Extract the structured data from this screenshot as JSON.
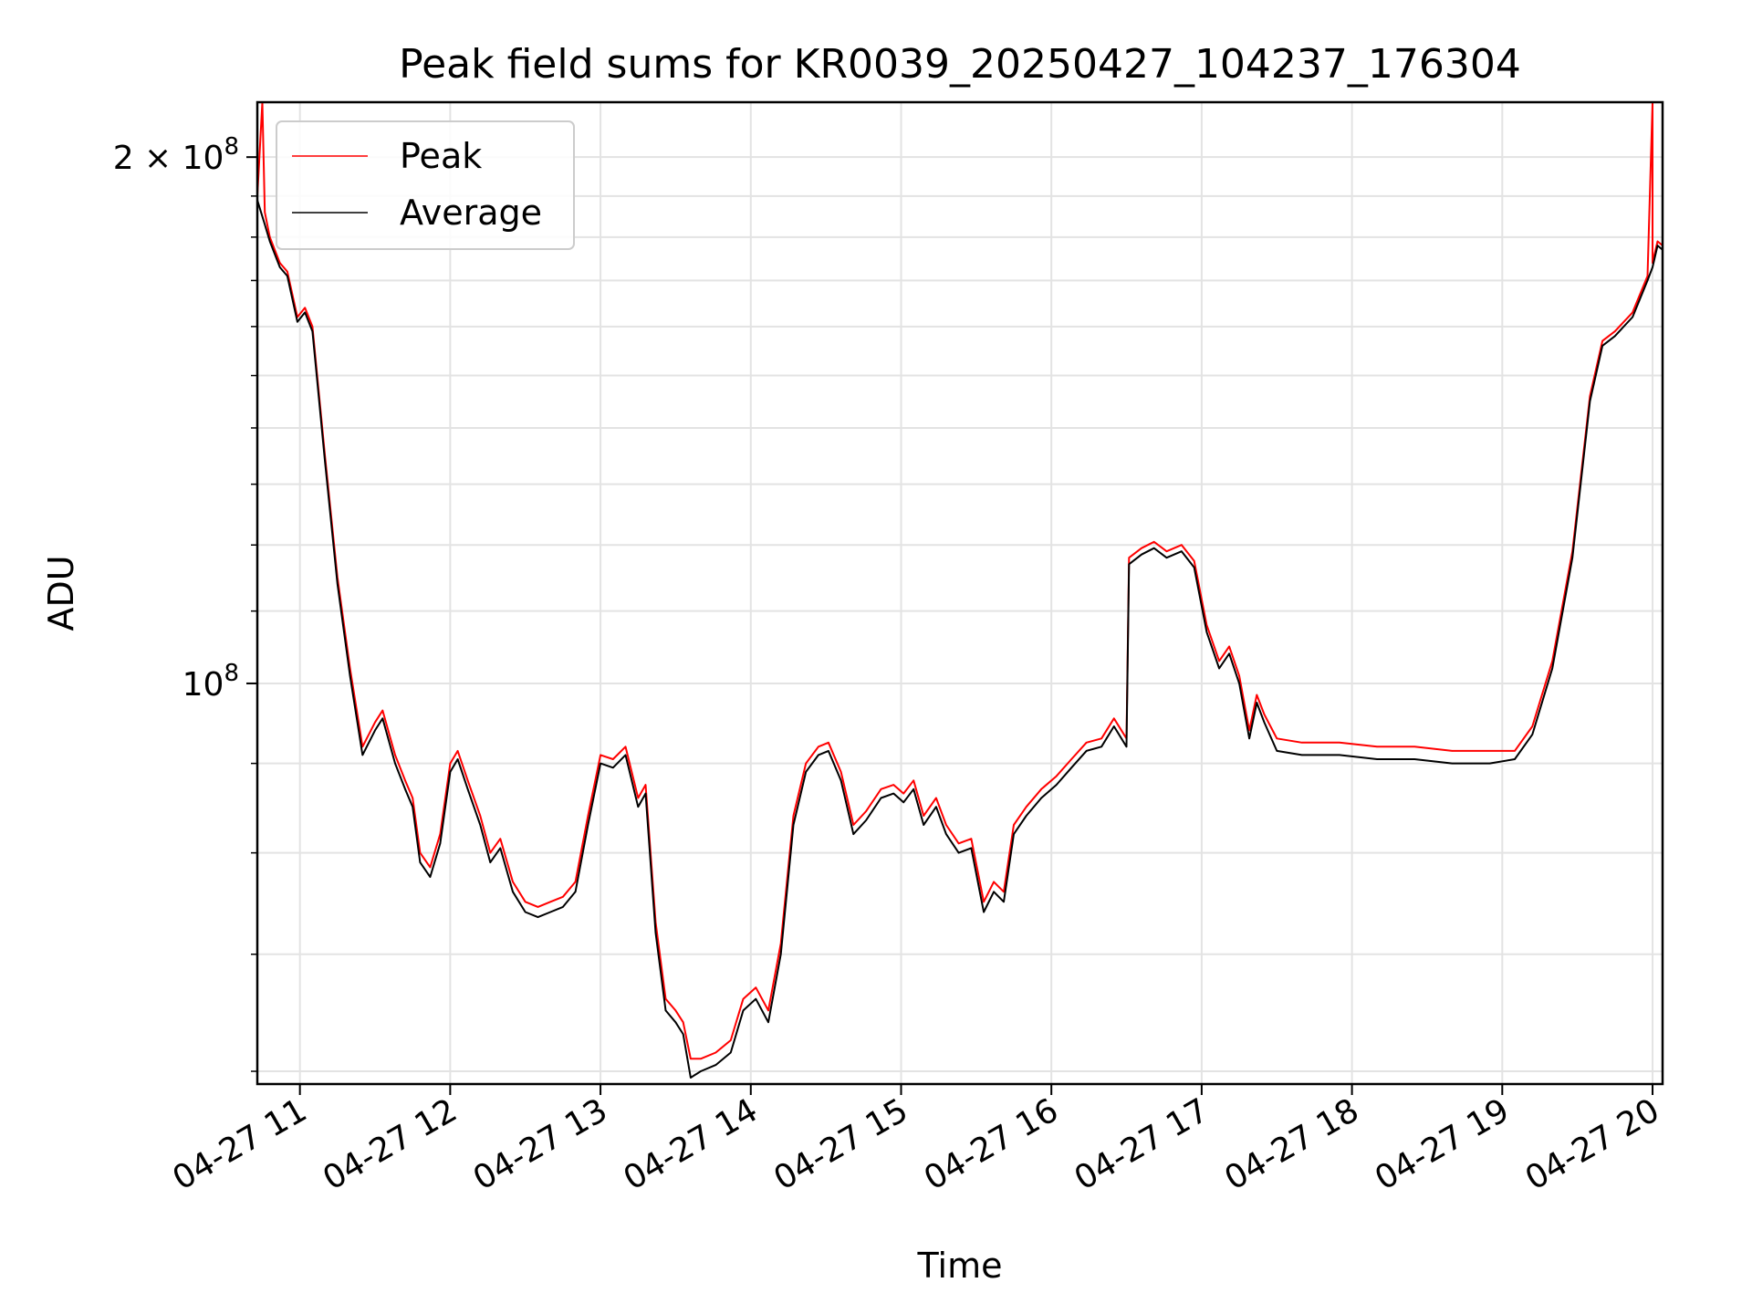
{
  "chart_data": {
    "type": "line",
    "title": "Peak field sums for KR0039_20250427_104237_176304",
    "xlabel": "Time",
    "ylabel": "ADU",
    "y_scale": "log",
    "ylim": [
      59000000,
      215000000
    ],
    "xlim": [
      "04-27 10:43",
      "04-27 20:04"
    ],
    "grid": true,
    "legend_position": "upper-left",
    "x_ticks": [
      "04-27 11",
      "04-27 12",
      "04-27 13",
      "04-27 14",
      "04-27 15",
      "04-27 16",
      "04-27 17",
      "04-27 18",
      "04-27 19",
      "04-27 20"
    ],
    "y_ticks": [
      {
        "value": 100000000,
        "base": "10",
        "exp": "8",
        "mult": ""
      },
      {
        "value": 200000000,
        "base": "10",
        "exp": "8",
        "mult": "2 × "
      }
    ],
    "series": [
      {
        "name": "Peak",
        "color": "#ff0000",
        "points": [
          [
            "04-27 10:43",
            190000000
          ],
          [
            "04-27 10:45",
            215000000
          ],
          [
            "04-27 10:46",
            186000000
          ],
          [
            "04-27 10:48",
            180000000
          ],
          [
            "04-27 10:52",
            174000000
          ],
          [
            "04-27 10:55",
            172000000
          ],
          [
            "04-27 10:59",
            162000000
          ],
          [
            "04-27 11:02",
            164000000
          ],
          [
            "04-27 11:05",
            160000000
          ],
          [
            "04-27 11:10",
            135000000
          ],
          [
            "04-27 11:15",
            115000000
          ],
          [
            "04-27 11:20",
            102000000
          ],
          [
            "04-27 11:25",
            92000000
          ],
          [
            "04-27 11:30",
            95000000
          ],
          [
            "04-27 11:33",
            96500000
          ],
          [
            "04-27 11:38",
            91000000
          ],
          [
            "04-27 11:42",
            88000000
          ],
          [
            "04-27 11:45",
            86000000
          ],
          [
            "04-27 11:48",
            80000000
          ],
          [
            "04-27 11:52",
            78500000
          ],
          [
            "04-27 11:56",
            82000000
          ],
          [
            "04-27 12:00",
            90000000
          ],
          [
            "04-27 12:03",
            91500000
          ],
          [
            "04-27 12:07",
            88000000
          ],
          [
            "04-27 12:12",
            84000000
          ],
          [
            "04-27 12:16",
            80000000
          ],
          [
            "04-27 12:20",
            81500000
          ],
          [
            "04-27 12:25",
            77000000
          ],
          [
            "04-27 12:30",
            75000000
          ],
          [
            "04-27 12:35",
            74500000
          ],
          [
            "04-27 12:40",
            75000000
          ],
          [
            "04-27 12:45",
            75500000
          ],
          [
            "04-27 12:50",
            77000000
          ],
          [
            "04-27 12:55",
            84000000
          ],
          [
            "04-27 13:00",
            91000000
          ],
          [
            "04-27 13:05",
            90500000
          ],
          [
            "04-27 13:10",
            92000000
          ],
          [
            "04-27 13:15",
            86000000
          ],
          [
            "04-27 13:18",
            87500000
          ],
          [
            "04-27 13:22",
            73000000
          ],
          [
            "04-27 13:26",
            66000000
          ],
          [
            "04-27 13:30",
            65000000
          ],
          [
            "04-27 13:33",
            64000000
          ],
          [
            "04-27 13:36",
            61000000
          ],
          [
            "04-27 13:40",
            61000000
          ],
          [
            "04-27 13:46",
            61500000
          ],
          [
            "04-27 13:52",
            62500000
          ],
          [
            "04-27 13:57",
            66000000
          ],
          [
            "04-27 14:02",
            67000000
          ],
          [
            "04-27 14:07",
            65000000
          ],
          [
            "04-27 14:12",
            71000000
          ],
          [
            "04-27 14:17",
            84000000
          ],
          [
            "04-27 14:22",
            90000000
          ],
          [
            "04-27 14:27",
            92000000
          ],
          [
            "04-27 14:31",
            92500000
          ],
          [
            "04-27 14:36",
            89000000
          ],
          [
            "04-27 14:41",
            83000000
          ],
          [
            "04-27 14:46",
            84500000
          ],
          [
            "04-27 14:52",
            87000000
          ],
          [
            "04-27 14:57",
            87500000
          ],
          [
            "04-27 15:01",
            86500000
          ],
          [
            "04-27 15:05",
            88000000
          ],
          [
            "04-27 15:09",
            84000000
          ],
          [
            "04-27 15:14",
            86000000
          ],
          [
            "04-27 15:18",
            83000000
          ],
          [
            "04-27 15:23",
            81000000
          ],
          [
            "04-27 15:28",
            81500000
          ],
          [
            "04-27 15:33",
            75000000
          ],
          [
            "04-27 15:37",
            77000000
          ],
          [
            "04-27 15:41",
            76000000
          ],
          [
            "04-27 15:45",
            83000000
          ],
          [
            "04-27 15:50",
            85000000
          ],
          [
            "04-27 15:56",
            87000000
          ],
          [
            "04-27 16:02",
            88500000
          ],
          [
            "04-27 16:08",
            90500000
          ],
          [
            "04-27 16:14",
            92500000
          ],
          [
            "04-27 16:20",
            93000000
          ],
          [
            "04-27 16:25",
            95500000
          ],
          [
            "04-27 16:30",
            93000000
          ],
          [
            "04-27 16:31",
            118000000
          ],
          [
            "04-27 16:36",
            119500000
          ],
          [
            "04-27 16:41",
            120500000
          ],
          [
            "04-27 16:46",
            119000000
          ],
          [
            "04-27 16:52",
            120000000
          ],
          [
            "04-27 16:57",
            117500000
          ],
          [
            "04-27 17:02",
            108000000
          ],
          [
            "04-27 17:07",
            103000000
          ],
          [
            "04-27 17:11",
            105000000
          ],
          [
            "04-27 17:15",
            101000000
          ],
          [
            "04-27 17:19",
            94000000
          ],
          [
            "04-27 17:22",
            98500000
          ],
          [
            "04-27 17:25",
            96000000
          ],
          [
            "04-27 17:30",
            93000000
          ],
          [
            "04-27 17:40",
            92500000
          ],
          [
            "04-27 17:55",
            92500000
          ],
          [
            "04-27 18:10",
            92000000
          ],
          [
            "04-27 18:25",
            92000000
          ],
          [
            "04-27 18:40",
            91500000
          ],
          [
            "04-27 18:55",
            91500000
          ],
          [
            "04-27 19:05",
            91500000
          ],
          [
            "04-27 19:12",
            94500000
          ],
          [
            "04-27 19:20",
            103000000
          ],
          [
            "04-27 19:28",
            119000000
          ],
          [
            "04-27 19:35",
            146000000
          ],
          [
            "04-27 19:40",
            157000000
          ],
          [
            "04-27 19:45",
            159000000
          ],
          [
            "04-27 19:52",
            163000000
          ],
          [
            "04-27 19:58",
            171000000
          ],
          [
            "04-27 20:00",
            215000000
          ],
          [
            "04-27 20:00",
            174000000
          ],
          [
            "04-27 20:02",
            179000000
          ],
          [
            "04-27 20:04",
            178000000
          ]
        ]
      },
      {
        "name": "Average",
        "color": "#000000",
        "points": [
          [
            "04-27 10:43",
            189000000
          ],
          [
            "04-27 10:46",
            183000000
          ],
          [
            "04-27 10:48",
            179000000
          ],
          [
            "04-27 10:52",
            173000000
          ],
          [
            "04-27 10:55",
            171000000
          ],
          [
            "04-27 10:59",
            161000000
          ],
          [
            "04-27 11:02",
            163000000
          ],
          [
            "04-27 11:05",
            159000000
          ],
          [
            "04-27 11:10",
            134000000
          ],
          [
            "04-27 11:15",
            114000000
          ],
          [
            "04-27 11:20",
            101000000
          ],
          [
            "04-27 11:25",
            91000000
          ],
          [
            "04-27 11:30",
            94000000
          ],
          [
            "04-27 11:33",
            95500000
          ],
          [
            "04-27 11:38",
            90000000
          ],
          [
            "04-27 11:42",
            87000000
          ],
          [
            "04-27 11:45",
            85000000
          ],
          [
            "04-27 11:48",
            79000000
          ],
          [
            "04-27 11:52",
            77500000
          ],
          [
            "04-27 11:56",
            81000000
          ],
          [
            "04-27 12:00",
            89000000
          ],
          [
            "04-27 12:03",
            90500000
          ],
          [
            "04-27 12:07",
            87000000
          ],
          [
            "04-27 12:12",
            83000000
          ],
          [
            "04-27 12:16",
            79000000
          ],
          [
            "04-27 12:20",
            80500000
          ],
          [
            "04-27 12:25",
            76000000
          ],
          [
            "04-27 12:30",
            74000000
          ],
          [
            "04-27 12:35",
            73500000
          ],
          [
            "04-27 12:40",
            74000000
          ],
          [
            "04-27 12:45",
            74500000
          ],
          [
            "04-27 12:50",
            76000000
          ],
          [
            "04-27 12:55",
            83000000
          ],
          [
            "04-27 13:00",
            90000000
          ],
          [
            "04-27 13:05",
            89500000
          ],
          [
            "04-27 13:10",
            91000000
          ],
          [
            "04-27 13:15",
            85000000
          ],
          [
            "04-27 13:18",
            86500000
          ],
          [
            "04-27 13:22",
            72000000
          ],
          [
            "04-27 13:26",
            65000000
          ],
          [
            "04-27 13:30",
            64000000
          ],
          [
            "04-27 13:33",
            63000000
          ],
          [
            "04-27 13:36",
            59500000
          ],
          [
            "04-27 13:40",
            60000000
          ],
          [
            "04-27 13:46",
            60500000
          ],
          [
            "04-27 13:52",
            61500000
          ],
          [
            "04-27 13:57",
            65000000
          ],
          [
            "04-27 14:02",
            66000000
          ],
          [
            "04-27 14:07",
            64000000
          ],
          [
            "04-27 14:12",
            70000000
          ],
          [
            "04-27 14:17",
            83000000
          ],
          [
            "04-27 14:22",
            89000000
          ],
          [
            "04-27 14:27",
            91000000
          ],
          [
            "04-27 14:31",
            91500000
          ],
          [
            "04-27 14:36",
            88000000
          ],
          [
            "04-27 14:41",
            82000000
          ],
          [
            "04-27 14:46",
            83500000
          ],
          [
            "04-27 14:52",
            86000000
          ],
          [
            "04-27 14:57",
            86500000
          ],
          [
            "04-27 15:01",
            85500000
          ],
          [
            "04-27 15:05",
            87000000
          ],
          [
            "04-27 15:09",
            83000000
          ],
          [
            "04-27 15:14",
            85000000
          ],
          [
            "04-27 15:18",
            82000000
          ],
          [
            "04-27 15:23",
            80000000
          ],
          [
            "04-27 15:28",
            80500000
          ],
          [
            "04-27 15:33",
            74000000
          ],
          [
            "04-27 15:37",
            76000000
          ],
          [
            "04-27 15:41",
            75000000
          ],
          [
            "04-27 15:45",
            82000000
          ],
          [
            "04-27 15:50",
            84000000
          ],
          [
            "04-27 15:56",
            86000000
          ],
          [
            "04-27 16:02",
            87500000
          ],
          [
            "04-27 16:08",
            89500000
          ],
          [
            "04-27 16:14",
            91500000
          ],
          [
            "04-27 16:20",
            92000000
          ],
          [
            "04-27 16:25",
            94500000
          ],
          [
            "04-27 16:30",
            92000000
          ],
          [
            "04-27 16:31",
            117000000
          ],
          [
            "04-27 16:36",
            118500000
          ],
          [
            "04-27 16:41",
            119500000
          ],
          [
            "04-27 16:46",
            118000000
          ],
          [
            "04-27 16:52",
            119000000
          ],
          [
            "04-27 16:57",
            116500000
          ],
          [
            "04-27 17:02",
            107000000
          ],
          [
            "04-27 17:07",
            102000000
          ],
          [
            "04-27 17:11",
            104000000
          ],
          [
            "04-27 17:15",
            100000000
          ],
          [
            "04-27 17:19",
            93000000
          ],
          [
            "04-27 17:22",
            97500000
          ],
          [
            "04-27 17:25",
            95000000
          ],
          [
            "04-27 17:30",
            91500000
          ],
          [
            "04-27 17:40",
            91000000
          ],
          [
            "04-27 17:55",
            91000000
          ],
          [
            "04-27 18:10",
            90500000
          ],
          [
            "04-27 18:25",
            90500000
          ],
          [
            "04-27 18:40",
            90000000
          ],
          [
            "04-27 18:55",
            90000000
          ],
          [
            "04-27 19:05",
            90500000
          ],
          [
            "04-27 19:12",
            93500000
          ],
          [
            "04-27 19:20",
            102000000
          ],
          [
            "04-27 19:28",
            118000000
          ],
          [
            "04-27 19:35",
            145000000
          ],
          [
            "04-27 19:40",
            156000000
          ],
          [
            "04-27 19:45",
            158000000
          ],
          [
            "04-27 19:52",
            162000000
          ],
          [
            "04-27 19:58",
            170000000
          ],
          [
            "04-27 20:00",
            173000000
          ],
          [
            "04-27 20:02",
            178000000
          ],
          [
            "04-27 20:04",
            177000000
          ]
        ]
      }
    ]
  }
}
